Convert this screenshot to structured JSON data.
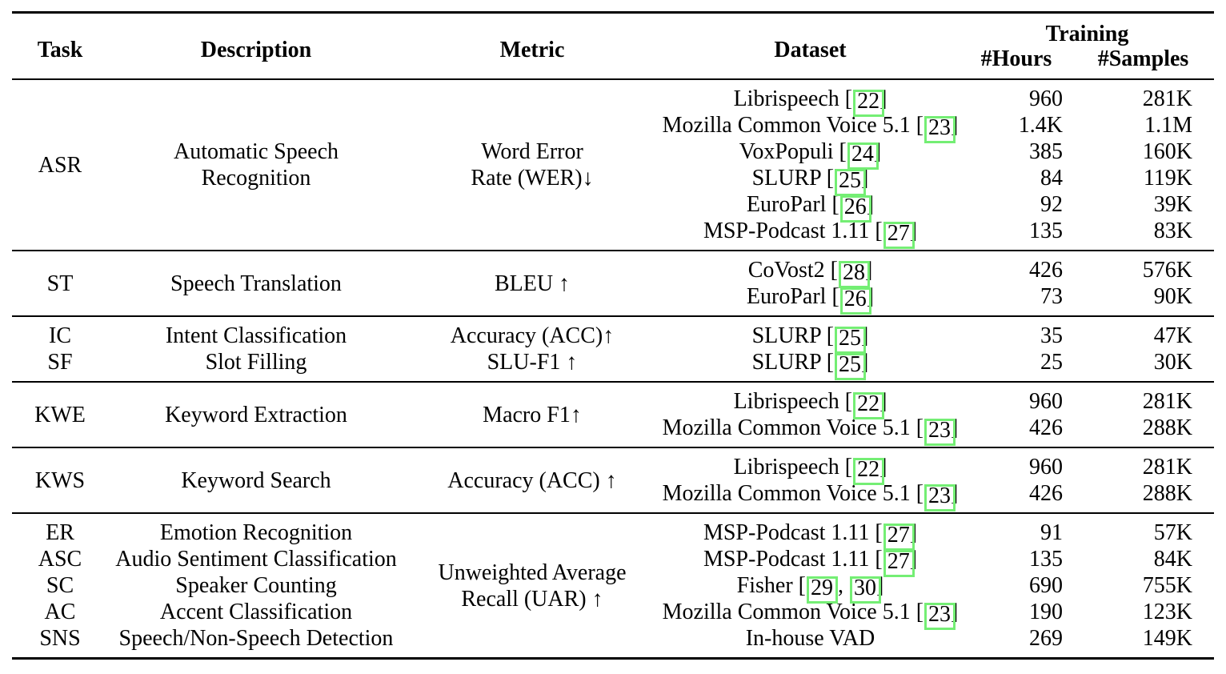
{
  "table": {
    "citation_box_color": "#74ee74",
    "header": {
      "task": "Task",
      "description": "Description",
      "metric": "Metric",
      "dataset": "Dataset",
      "training": "Training",
      "hours": "#Hours",
      "samples": "#Samples"
    },
    "sections": [
      {
        "task": {
          "lines": [
            "ASR"
          ]
        },
        "description": {
          "lines": [
            "Automatic Speech",
            "Recognition"
          ]
        },
        "metric": {
          "lines": [
            "Word Error",
            "Rate (WER)↓"
          ]
        },
        "rows": [
          {
            "dataset": "Librispeech",
            "cites": [
              "22"
            ],
            "hours": "960",
            "samples": "281K"
          },
          {
            "dataset": "Mozilla Common Voice 5.1",
            "cites": [
              "23"
            ],
            "hours": "1.4K",
            "samples": "1.1M"
          },
          {
            "dataset": "VoxPopuli",
            "cites": [
              "24"
            ],
            "hours": "385",
            "samples": "160K"
          },
          {
            "dataset": "SLURP",
            "cites": [
              "25"
            ],
            "hours": "84",
            "samples": "119K"
          },
          {
            "dataset": "EuroParl",
            "cites": [
              "26"
            ],
            "hours": "92",
            "samples": "39K"
          },
          {
            "dataset": "MSP-Podcast 1.11",
            "cites": [
              "27"
            ],
            "hours": "135",
            "samples": "83K"
          }
        ]
      },
      {
        "task": {
          "lines": [
            "ST"
          ]
        },
        "description": {
          "lines": [
            "Speech Translation"
          ]
        },
        "metric": {
          "lines": [
            "BLEU ↑"
          ]
        },
        "rows": [
          {
            "dataset": "CoVost2",
            "cites": [
              "28"
            ],
            "hours": "426",
            "samples": "576K"
          },
          {
            "dataset": "EuroParl",
            "cites": [
              "26"
            ],
            "hours": "73",
            "samples": "90K"
          }
        ]
      },
      {
        "rows": [
          {
            "task": "IC",
            "description": "Intent Classification",
            "metric": "Accuracy (ACC)↑",
            "dataset": "SLURP",
            "cites": [
              "25"
            ],
            "hours": "35",
            "samples": "47K"
          },
          {
            "task": "SF",
            "description": "Slot Filling",
            "metric": "SLU-F1 ↑",
            "dataset": "SLURP",
            "cites": [
              "25"
            ],
            "hours": "25",
            "samples": "30K"
          }
        ]
      },
      {
        "task": {
          "lines": [
            "KWE"
          ]
        },
        "description": {
          "lines": [
            "Keyword Extraction"
          ]
        },
        "metric": {
          "lines": [
            "Macro F1↑"
          ]
        },
        "rows": [
          {
            "dataset": "Librispeech",
            "cites": [
              "22"
            ],
            "hours": "960",
            "samples": "281K"
          },
          {
            "dataset": "Mozilla Common Voice 5.1",
            "cites": [
              "23"
            ],
            "hours": "426",
            "samples": "288K"
          }
        ]
      },
      {
        "task": {
          "lines": [
            "KWS"
          ]
        },
        "description": {
          "lines": [
            "Keyword Search"
          ]
        },
        "metric": {
          "lines": [
            "Accuracy (ACC) ↑"
          ]
        },
        "rows": [
          {
            "dataset": "Librispeech",
            "cites": [
              "22"
            ],
            "hours": "960",
            "samples": "281K"
          },
          {
            "dataset": "Mozilla Common Voice 5.1",
            "cites": [
              "23"
            ],
            "hours": "426",
            "samples": "288K"
          }
        ]
      },
      {
        "metric": {
          "lines": [
            "Unweighted Average",
            "Recall (UAR) ↑"
          ]
        },
        "rows": [
          {
            "task": "ER",
            "description": "Emotion Recognition",
            "dataset": "MSP-Podcast 1.11",
            "cites": [
              "27"
            ],
            "hours": "91",
            "samples": "57K"
          },
          {
            "task": "ASC",
            "description": "Audio Sentiment Classification",
            "dataset": "MSP-Podcast 1.11",
            "cites": [
              "27"
            ],
            "hours": "135",
            "samples": "84K"
          },
          {
            "task": "SC",
            "description": "Speaker Counting",
            "dataset": "Fisher",
            "cites": [
              "29",
              "30"
            ],
            "hours": "690",
            "samples": "755K"
          },
          {
            "task": "AC",
            "description": "Accent Classification",
            "dataset": "Mozilla Common Voice 5.1",
            "cites": [
              "23"
            ],
            "hours": "190",
            "samples": "123K"
          },
          {
            "task": "SNS",
            "description": "Speech/Non-Speech Detection",
            "dataset": "In-house VAD",
            "cites": [],
            "hours": "269",
            "samples": "149K"
          }
        ]
      }
    ]
  }
}
